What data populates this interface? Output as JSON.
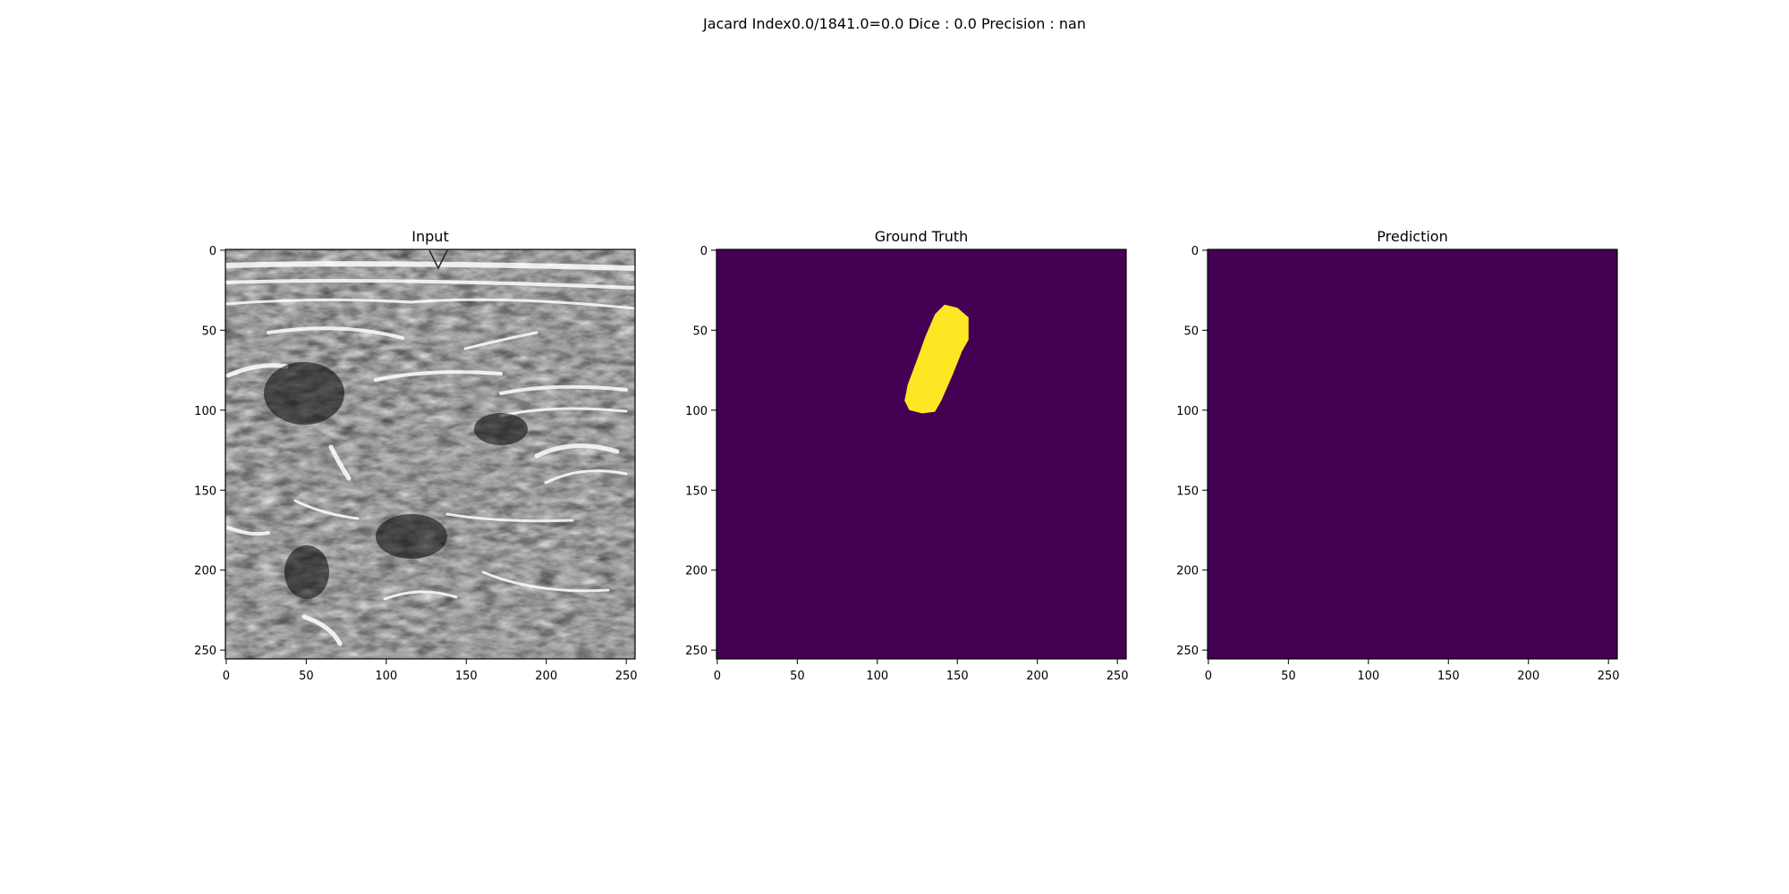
{
  "figure": {
    "suptitle": "Jacard Index0.0/1841.0=0.0 Dice : 0.0 Precision : nan"
  },
  "colors": {
    "mask_background": "#440154",
    "mask_foreground": "#fde725",
    "axis_frame": "#000000"
  },
  "chart_data": [
    {
      "type": "heatmap",
      "title": "Input",
      "colormap": "gray",
      "content": "grayscale ultrasound image",
      "xlim": [
        0,
        255
      ],
      "ylim": [
        255,
        0
      ],
      "xticks": [
        0,
        50,
        100,
        150,
        200,
        250
      ],
      "yticks": [
        0,
        50,
        100,
        150,
        200,
        250
      ],
      "grid": false
    },
    {
      "type": "heatmap",
      "title": "Ground Truth",
      "colormap": "viridis",
      "content": "binary mask",
      "xlim": [
        0,
        255
      ],
      "ylim": [
        255,
        0
      ],
      "xticks": [
        0,
        50,
        100,
        150,
        200,
        250
      ],
      "yticks": [
        0,
        50,
        100,
        150,
        200,
        250
      ],
      "grid": false,
      "foreground_region": [
        [
          142,
          34
        ],
        [
          150,
          36
        ],
        [
          157,
          42
        ],
        [
          157,
          56
        ],
        [
          153,
          63
        ],
        [
          147,
          78
        ],
        [
          140,
          94
        ],
        [
          136,
          101
        ],
        [
          128,
          102
        ],
        [
          120,
          100
        ],
        [
          117,
          94
        ],
        [
          119,
          84
        ],
        [
          125,
          68
        ],
        [
          130,
          54
        ],
        [
          136,
          40
        ]
      ]
    },
    {
      "type": "heatmap",
      "title": "Prediction",
      "colormap": "viridis",
      "content": "binary mask (empty)",
      "xlim": [
        0,
        255
      ],
      "ylim": [
        255,
        0
      ],
      "xticks": [
        0,
        50,
        100,
        150,
        200,
        250
      ],
      "yticks": [
        0,
        50,
        100,
        150,
        200,
        250
      ],
      "grid": false,
      "foreground_region": []
    }
  ]
}
